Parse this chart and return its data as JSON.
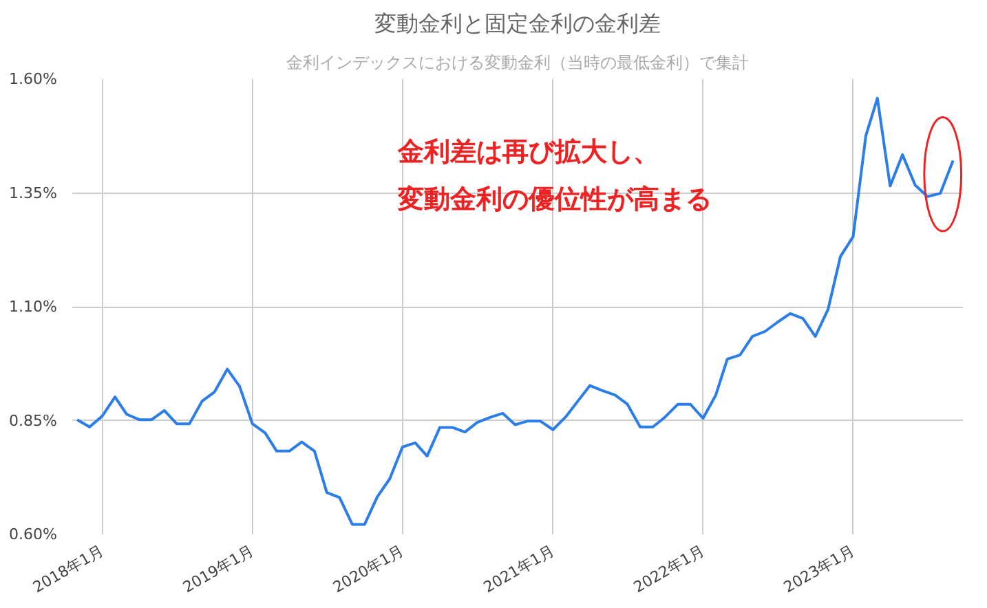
{
  "chart_data": {
    "type": "line",
    "title": "変動金利と固定金利の金利差",
    "subtitle": "金利インデックスにおける変動金利（当時の最低金利）で集計",
    "annotations": [
      "金利差は再び拡大し、",
      "変動金利の優位性が高まる"
    ],
    "x": [
      "2017-11",
      "2017-12",
      "2018-01",
      "2018-02",
      "2018-03",
      "2018-04",
      "2018-05",
      "2018-06",
      "2018-07",
      "2018-08",
      "2018-09",
      "2018-10",
      "2018-11",
      "2018-12",
      "2019-01",
      "2019-02",
      "2019-03",
      "2019-04",
      "2019-05",
      "2019-06",
      "2019-07",
      "2019-08",
      "2019-09",
      "2019-10",
      "2019-11",
      "2019-12",
      "2020-01",
      "2020-02",
      "2020-03",
      "2020-04",
      "2020-05",
      "2020-06",
      "2020-07",
      "2020-08",
      "2020-09",
      "2020-10",
      "2020-11",
      "2020-12",
      "2021-01",
      "2021-02",
      "2021-03",
      "2021-04",
      "2021-05",
      "2021-06",
      "2021-07",
      "2021-08",
      "2021-09",
      "2021-10",
      "2021-11",
      "2021-12",
      "2022-01",
      "2022-02",
      "2022-03",
      "2022-04",
      "2022-05",
      "2022-06",
      "2022-07",
      "2022-08",
      "2022-09",
      "2022-10",
      "2022-11",
      "2022-12",
      "2023-01",
      "2023-02",
      "2023-03",
      "2023-04",
      "2023-05",
      "2023-06",
      "2023-07",
      "2023-08",
      "2023-09"
    ],
    "series": [
      {
        "color": "#2b7de9",
        "values": [
          0.852,
          0.836,
          0.86,
          0.902,
          0.864,
          0.852,
          0.852,
          0.872,
          0.843,
          0.843,
          0.893,
          0.913,
          0.963,
          0.925,
          0.843,
          0.823,
          0.783,
          0.783,
          0.803,
          0.783,
          0.692,
          0.681,
          0.622,
          0.622,
          0.683,
          0.722,
          0.792,
          0.801,
          0.772,
          0.835,
          0.835,
          0.825,
          0.846,
          0.857,
          0.866,
          0.841,
          0.849,
          0.849,
          0.83,
          0.858,
          0.891,
          0.927,
          0.916,
          0.906,
          0.886,
          0.836,
          0.836,
          0.858,
          0.886,
          0.886,
          0.855,
          0.906,
          0.985,
          0.994,
          1.035,
          1.046,
          1.066,
          1.085,
          1.074,
          1.035,
          1.094,
          1.21,
          1.254,
          1.476,
          1.558,
          1.365,
          1.434,
          1.367,
          1.342,
          1.349,
          1.421
        ]
      }
    ],
    "xlim": [
      "2017-10-20",
      "2023-09-25"
    ],
    "xticks": [
      {
        "value": "2018-01",
        "label": "2018年1月"
      },
      {
        "value": "2019-01",
        "label": "2019年1月"
      },
      {
        "value": "2020-01",
        "label": "2020年1月"
      },
      {
        "value": "2021-01",
        "label": "2021年1月"
      },
      {
        "value": "2022-01",
        "label": "2022年1月"
      },
      {
        "value": "2023-01",
        "label": "2023年1月"
      }
    ],
    "ylim": [
      0.6,
      1.6
    ],
    "yticks": [
      {
        "value": 0.6,
        "label": "0.60%"
      },
      {
        "value": 0.85,
        "label": "0.85%"
      },
      {
        "value": 1.1,
        "label": "1.10%"
      },
      {
        "value": 1.35,
        "label": "1.35%"
      },
      {
        "value": 1.6,
        "label": "1.60%"
      }
    ],
    "grid": true,
    "marker": "none",
    "line_style": "solid"
  }
}
